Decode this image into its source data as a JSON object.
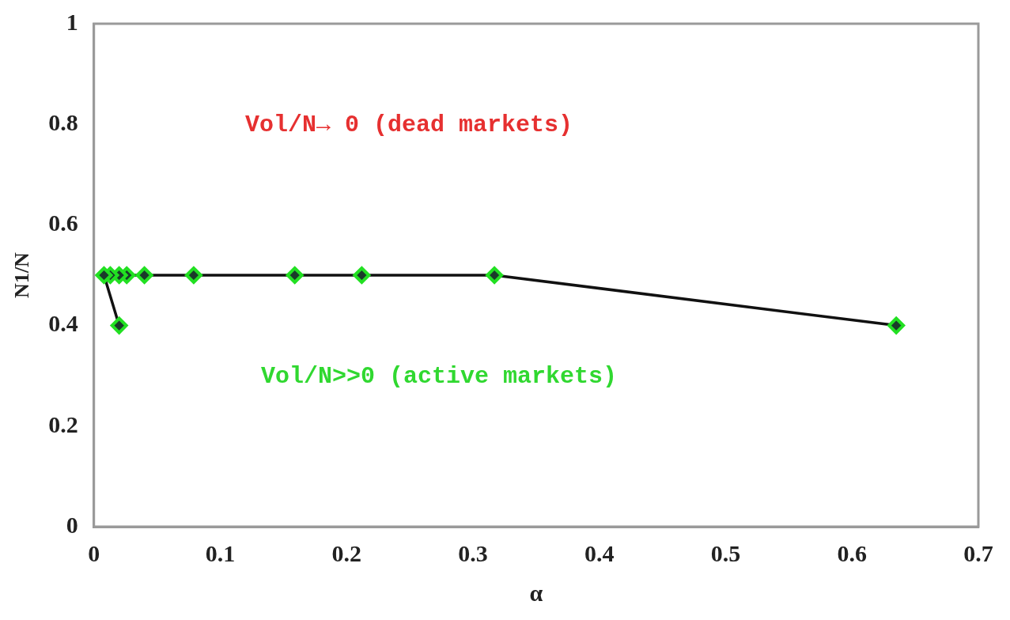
{
  "chart_data": {
    "type": "line",
    "xlabel": "α",
    "ylabel": "N1/N",
    "series": [
      {
        "color": "#111111",
        "x": [
          0.635,
          0.317,
          0.212,
          0.159,
          0.079,
          0.04,
          0.026,
          0.02,
          0.013,
          0.008,
          0.02
        ],
        "values": [
          0.4,
          0.5,
          0.5,
          0.5,
          0.5,
          0.5,
          0.5,
          0.5,
          0.5,
          0.5,
          0.4
        ]
      }
    ],
    "xlim": [
      0,
      0.7
    ],
    "xticks": [
      0,
      {
        "value": 0.1,
        "label": "0.1"
      },
      {
        "value": 0.2,
        "label": "0.2"
      },
      {
        "value": 0.3,
        "label": "0.3"
      },
      {
        "value": 0.4,
        "label": "0.4"
      },
      {
        "value": 0.5,
        "label": "0.5"
      },
      {
        "value": 0.6,
        "label": "0.6"
      },
      {
        "value": 0.7,
        "label": "0.7"
      }
    ],
    "ylim": [
      0,
      1
    ],
    "yticks": [
      0,
      {
        "value": 0.2,
        "label": "0.2"
      },
      {
        "value": 0.4,
        "label": "0.4"
      },
      {
        "value": 0.6,
        "label": "0.6"
      },
      {
        "value": 0.8,
        "label": "0.8"
      },
      1
    ],
    "annotations": [
      "Vol/N→ 0 (dead markets)",
      "Vol/N>>0 (active markets)"
    ],
    "grid": false,
    "legend": false,
    "marker": "diamond",
    "line_style": "solid"
  }
}
